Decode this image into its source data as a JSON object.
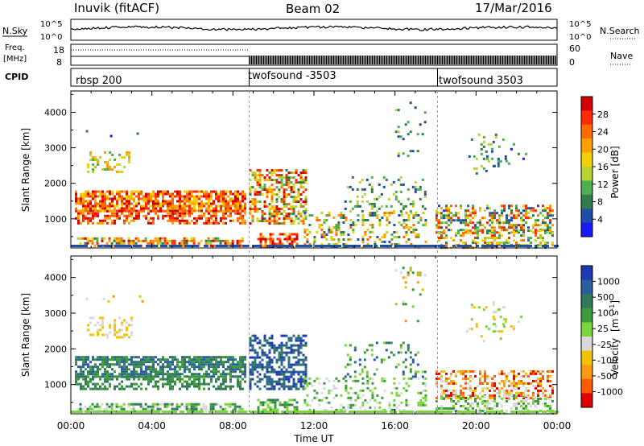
{
  "header": {
    "station": "Inuvik (fitACF)",
    "beam": "Beam 02",
    "date": "17/Mar/2016"
  },
  "top_panels": {
    "nsky_label": "N.Sky",
    "nsearch_label": "N.Search",
    "nsky_ticks": [
      "10^5",
      "10^0"
    ],
    "nsearch_ticks": [
      "10^5",
      "10^0"
    ],
    "freq_label": "Freq.",
    "freq_unit": "[MHz]",
    "freq_ticks": [
      "18",
      "8"
    ],
    "nave_label": "Nave",
    "nave_ticks": [
      "60",
      "0"
    ],
    "cpid_label": "CPID"
  },
  "cpid_segments": [
    {
      "label": "rbsp 200",
      "start_hour": 0
    },
    {
      "label": "twofsound -3503",
      "start_hour": 8.8
    },
    {
      "label": "twofsound 3503",
      "start_hour": 18.1
    }
  ],
  "colors": {
    "power": [
      "#1a1aff",
      "#1e4fa8",
      "#2e7d4a",
      "#4caf50",
      "#b8d430",
      "#f5d000",
      "#ffa000",
      "#ff6a00",
      "#ff2a00",
      "#d40000"
    ],
    "velocity": [
      "#e00000",
      "#ff5a00",
      "#ff9a10",
      "#f2c200",
      "#d9d9d9",
      "#7ad63c",
      "#3c9a3c",
      "#2e7a5a",
      "#2a5ea0",
      "#1e3cb0"
    ]
  },
  "chart_data": [
    {
      "type": "heatmap",
      "name": "power",
      "xlabel": "",
      "ylabel": "Slant Range [km]",
      "xlim": [
        0,
        24
      ],
      "ylim": [
        180,
        4600
      ],
      "yticks": [
        "1000",
        "2000",
        "3000",
        "4000"
      ],
      "colorbar_label": "Power [dB]",
      "colorbar_ticks": [
        "4",
        "8",
        "12",
        "16",
        "20",
        "24",
        "28"
      ],
      "colorbar_range": [
        0,
        32
      ]
    },
    {
      "type": "heatmap",
      "name": "velocity",
      "xlabel": "Time UT",
      "ylabel": "Slant Range [km]",
      "xlim": [
        0,
        24
      ],
      "ylim": [
        180,
        4600
      ],
      "xticks": [
        "00:00",
        "04:00",
        "08:00",
        "12:00",
        "16:00",
        "20:00",
        "00:00"
      ],
      "yticks": [
        "1000",
        "2000",
        "3000",
        "4000"
      ],
      "colorbar_label": "Velocity",
      "colorbar_unit": "[m s",
      "colorbar_unit_exp": "-1",
      "colorbar_unit_end": "]",
      "colorbar_ticks": [
        "1000",
        "500",
        "100",
        "25",
        "-25",
        "-100",
        "-500",
        "-1000"
      ]
    }
  ]
}
